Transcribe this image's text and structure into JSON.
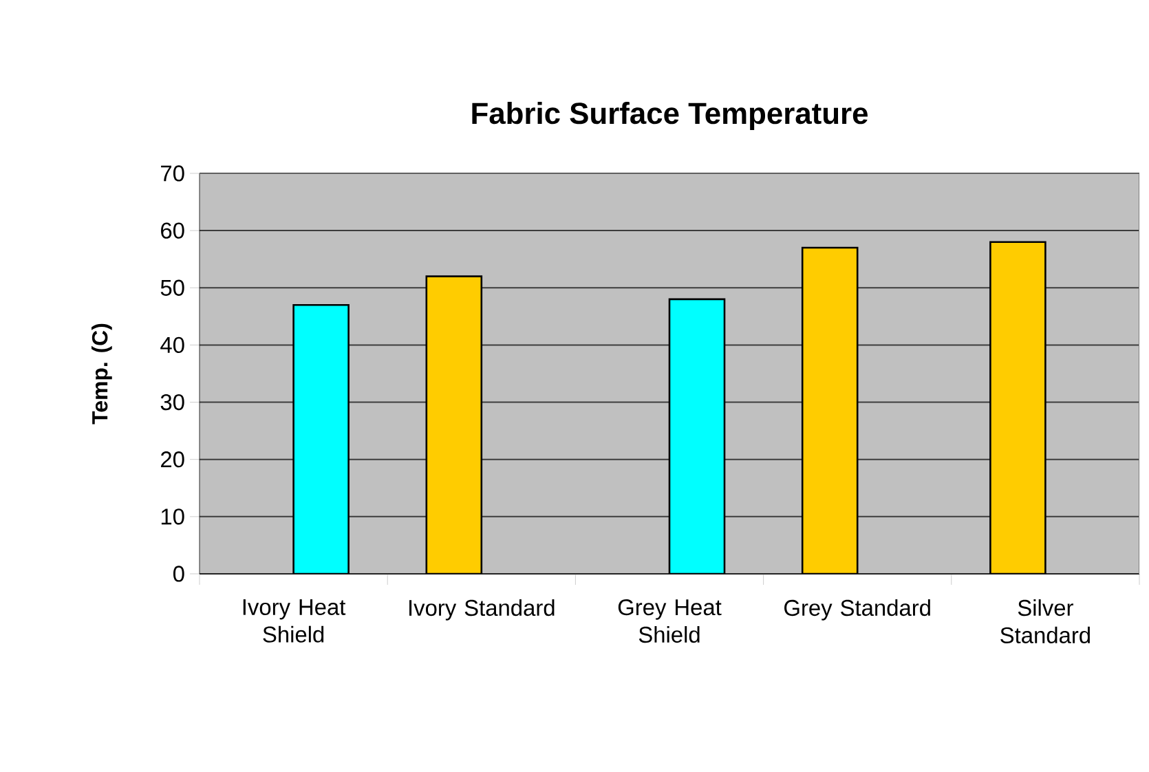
{
  "chart_data": {
    "type": "bar",
    "title": "Fabric Surface Temperature",
    "ylabel": "Temp. (C)",
    "categories": [
      "Ivory Heat Shield",
      "Ivory Standard",
      "Grey Heat Shield",
      "Grey Standard",
      "Silver Standard"
    ],
    "series": [
      {
        "color": "#ffcc00",
        "values": [
          null,
          52,
          null,
          57,
          58
        ]
      },
      {
        "color": "#00ffff",
        "values": [
          47,
          null,
          48,
          null,
          null
        ]
      }
    ],
    "ylim": [
      0,
      70
    ],
    "yticks": [
      0,
      10,
      20,
      30,
      40,
      50,
      60,
      70
    ],
    "grid": "y"
  }
}
